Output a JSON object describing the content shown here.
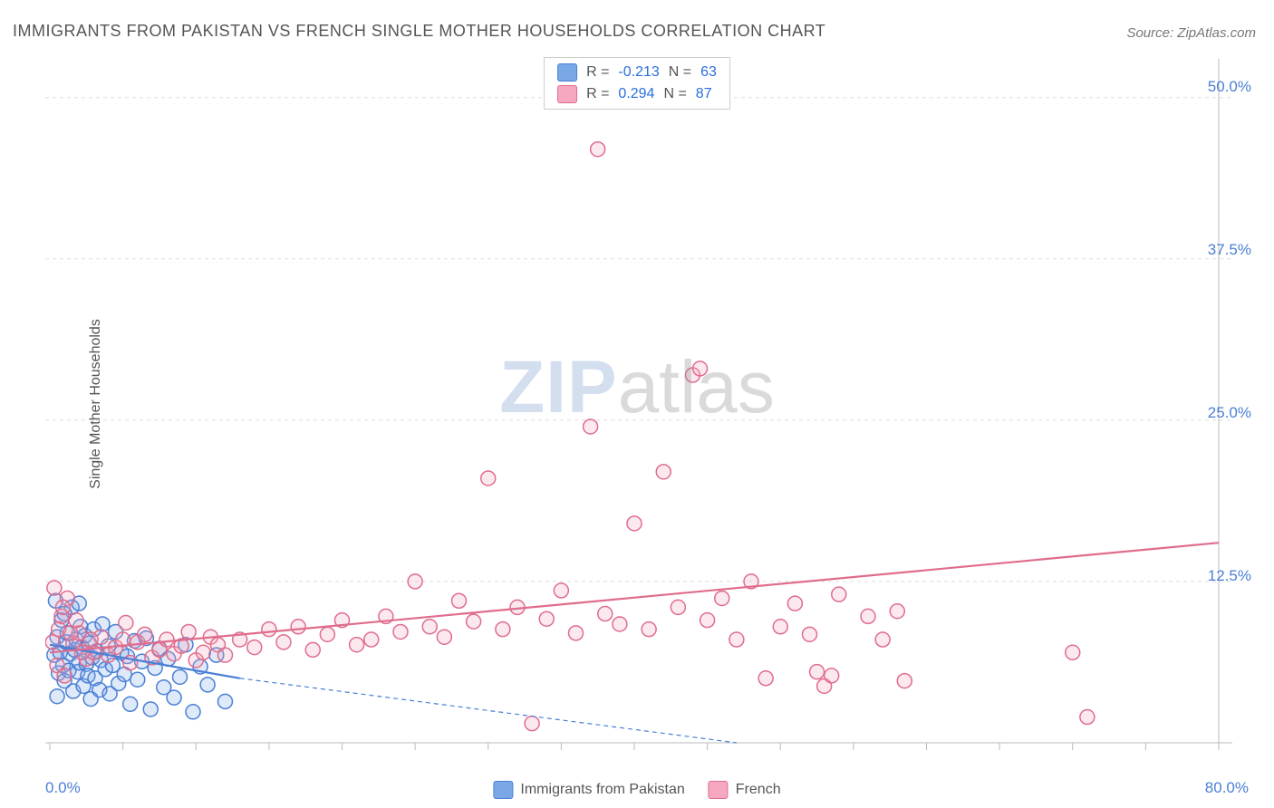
{
  "title": "IMMIGRANTS FROM PAKISTAN VS FRENCH SINGLE MOTHER HOUSEHOLDS CORRELATION CHART",
  "source": "Source: ZipAtlas.com",
  "y_axis_label": "Single Mother Households",
  "watermark": {
    "prefix": "ZIP",
    "suffix": "atlas"
  },
  "chart": {
    "type": "scatter",
    "xlim": [
      0,
      80
    ],
    "ylim": [
      0,
      53
    ],
    "x_ticks_major": [
      0,
      5,
      10,
      15,
      20,
      25,
      30,
      35,
      40,
      45,
      50,
      55,
      60,
      65,
      70,
      75,
      80
    ],
    "x_tick_labels": {
      "min": "0.0%",
      "max": "80.0%"
    },
    "y_gridlines": [
      12.5,
      25.0,
      37.5,
      50.0
    ],
    "y_tick_labels": [
      "12.5%",
      "25.0%",
      "37.5%",
      "50.0%"
    ],
    "background_color": "#ffffff",
    "grid_color": "#dddddd",
    "axis_color": "#bbbbbb",
    "marker_radius": 8,
    "marker_stroke_width": 1.5,
    "marker_fill_opacity": 0.25,
    "line_width_solid": 2.2,
    "line_width_dash": 1.2
  },
  "series_a": {
    "name": "Immigrants from Pakistan",
    "fill_color": "#7aa8e6",
    "stroke_color": "#4a7fd6",
    "n": 63,
    "r": "-0.213",
    "trend_solid": {
      "x1": 0,
      "y1": 7.6,
      "x2": 13,
      "y2": 5.0
    },
    "trend_dash": {
      "x1": 13,
      "y1": 5.0,
      "x2": 47,
      "y2": 0.0
    },
    "points": [
      {
        "x": 0.3,
        "y": 6.8
      },
      {
        "x": 0.5,
        "y": 8.2
      },
      {
        "x": 0.6,
        "y": 5.4
      },
      {
        "x": 0.7,
        "y": 7.0
      },
      {
        "x": 0.8,
        "y": 9.5
      },
      {
        "x": 0.9,
        "y": 6.0
      },
      {
        "x": 1.0,
        "y": 4.8
      },
      {
        "x": 1.1,
        "y": 7.8
      },
      {
        "x": 1.2,
        "y": 8.5
      },
      {
        "x": 1.3,
        "y": 5.6
      },
      {
        "x": 1.4,
        "y": 6.9
      },
      {
        "x": 1.5,
        "y": 10.5
      },
      {
        "x": 1.6,
        "y": 4.0
      },
      {
        "x": 1.7,
        "y": 7.2
      },
      {
        "x": 1.8,
        "y": 8.0
      },
      {
        "x": 1.9,
        "y": 5.5
      },
      {
        "x": 2.0,
        "y": 6.2
      },
      {
        "x": 2.1,
        "y": 9.0
      },
      {
        "x": 2.2,
        "y": 7.4
      },
      {
        "x": 2.3,
        "y": 4.4
      },
      {
        "x": 2.4,
        "y": 8.3
      },
      {
        "x": 2.5,
        "y": 6.1
      },
      {
        "x": 2.6,
        "y": 5.2
      },
      {
        "x": 2.7,
        "y": 7.7
      },
      {
        "x": 2.8,
        "y": 3.4
      },
      {
        "x": 2.9,
        "y": 6.6
      },
      {
        "x": 3.0,
        "y": 8.8
      },
      {
        "x": 3.1,
        "y": 5.0
      },
      {
        "x": 3.2,
        "y": 7.1
      },
      {
        "x": 3.4,
        "y": 4.1
      },
      {
        "x": 3.5,
        "y": 6.4
      },
      {
        "x": 3.6,
        "y": 9.2
      },
      {
        "x": 3.8,
        "y": 5.7
      },
      {
        "x": 4.0,
        "y": 7.5
      },
      {
        "x": 4.1,
        "y": 3.8
      },
      {
        "x": 4.3,
        "y": 6.0
      },
      {
        "x": 4.5,
        "y": 8.6
      },
      {
        "x": 4.7,
        "y": 4.6
      },
      {
        "x": 4.9,
        "y": 7.0
      },
      {
        "x": 5.1,
        "y": 5.3
      },
      {
        "x": 5.3,
        "y": 6.7
      },
      {
        "x": 5.5,
        "y": 3.0
      },
      {
        "x": 5.8,
        "y": 7.9
      },
      {
        "x": 6.0,
        "y": 4.9
      },
      {
        "x": 6.3,
        "y": 6.3
      },
      {
        "x": 6.6,
        "y": 8.1
      },
      {
        "x": 6.9,
        "y": 2.6
      },
      {
        "x": 7.2,
        "y": 5.8
      },
      {
        "x": 7.5,
        "y": 7.3
      },
      {
        "x": 7.8,
        "y": 4.3
      },
      {
        "x": 8.1,
        "y": 6.5
      },
      {
        "x": 8.5,
        "y": 3.5
      },
      {
        "x": 8.9,
        "y": 5.1
      },
      {
        "x": 9.3,
        "y": 7.6
      },
      {
        "x": 9.8,
        "y": 2.4
      },
      {
        "x": 10.3,
        "y": 5.9
      },
      {
        "x": 10.8,
        "y": 4.5
      },
      {
        "x": 11.4,
        "y": 6.8
      },
      {
        "x": 12.0,
        "y": 3.2
      },
      {
        "x": 0.4,
        "y": 11.0
      },
      {
        "x": 0.5,
        "y": 3.6
      },
      {
        "x": 1.0,
        "y": 10.0
      },
      {
        "x": 2.0,
        "y": 10.8
      }
    ]
  },
  "series_b": {
    "name": "French",
    "fill_color": "#f5a8c0",
    "stroke_color": "#e06c8c",
    "n": 87,
    "r": "0.294",
    "trend_solid": {
      "x1": 0,
      "y1": 7.0,
      "x2": 80,
      "y2": 15.5
    },
    "points": [
      {
        "x": 0.2,
        "y": 7.8
      },
      {
        "x": 0.5,
        "y": 6.0
      },
      {
        "x": 0.8,
        "y": 9.8
      },
      {
        "x": 1.0,
        "y": 5.2
      },
      {
        "x": 1.2,
        "y": 11.2
      },
      {
        "x": 1.6,
        "y": 7.7
      },
      {
        "x": 2.0,
        "y": 8.5
      },
      {
        "x": 2.5,
        "y": 6.5
      },
      {
        "x": 3.0,
        "y": 7.0
      },
      {
        "x": 3.5,
        "y": 8.2
      },
      {
        "x": 4.0,
        "y": 6.8
      },
      {
        "x": 4.5,
        "y": 7.4
      },
      {
        "x": 5.0,
        "y": 8.0
      },
      {
        "x": 5.5,
        "y": 6.2
      },
      {
        "x": 6.0,
        "y": 7.8
      },
      {
        "x": 6.5,
        "y": 8.4
      },
      {
        "x": 7.0,
        "y": 6.6
      },
      {
        "x": 7.5,
        "y": 7.2
      },
      {
        "x": 8.0,
        "y": 8.0
      },
      {
        "x": 8.5,
        "y": 6.9
      },
      {
        "x": 9.0,
        "y": 7.5
      },
      {
        "x": 9.5,
        "y": 8.6
      },
      {
        "x": 10.0,
        "y": 6.4
      },
      {
        "x": 10.5,
        "y": 7.0
      },
      {
        "x": 11.0,
        "y": 8.2
      },
      {
        "x": 11.5,
        "y": 7.6
      },
      {
        "x": 12.0,
        "y": 6.8
      },
      {
        "x": 13.0,
        "y": 8.0
      },
      {
        "x": 14.0,
        "y": 7.4
      },
      {
        "x": 15.0,
        "y": 8.8
      },
      {
        "x": 16.0,
        "y": 7.8
      },
      {
        "x": 17.0,
        "y": 9.0
      },
      {
        "x": 18.0,
        "y": 7.2
      },
      {
        "x": 19.0,
        "y": 8.4
      },
      {
        "x": 20.0,
        "y": 9.5
      },
      {
        "x": 21.0,
        "y": 7.6
      },
      {
        "x": 22.0,
        "y": 8.0
      },
      {
        "x": 23.0,
        "y": 9.8
      },
      {
        "x": 24.0,
        "y": 8.6
      },
      {
        "x": 25.0,
        "y": 12.5
      },
      {
        "x": 26.0,
        "y": 9.0
      },
      {
        "x": 27.0,
        "y": 8.2
      },
      {
        "x": 28.0,
        "y": 11.0
      },
      {
        "x": 29.0,
        "y": 9.4
      },
      {
        "x": 30.0,
        "y": 20.5
      },
      {
        "x": 31.0,
        "y": 8.8
      },
      {
        "x": 32.0,
        "y": 10.5
      },
      {
        "x": 33.0,
        "y": 1.5
      },
      {
        "x": 34.0,
        "y": 9.6
      },
      {
        "x": 35.0,
        "y": 11.8
      },
      {
        "x": 36.0,
        "y": 8.5
      },
      {
        "x": 37.0,
        "y": 24.5
      },
      {
        "x": 37.5,
        "y": 46.0
      },
      {
        "x": 38.0,
        "y": 10.0
      },
      {
        "x": 39.0,
        "y": 9.2
      },
      {
        "x": 40.0,
        "y": 17.0
      },
      {
        "x": 41.0,
        "y": 8.8
      },
      {
        "x": 42.0,
        "y": 21.0
      },
      {
        "x": 43.0,
        "y": 10.5
      },
      {
        "x": 44.0,
        "y": 28.5
      },
      {
        "x": 44.5,
        "y": 29.0
      },
      {
        "x": 45.0,
        "y": 9.5
      },
      {
        "x": 46.0,
        "y": 11.2
      },
      {
        "x": 47.0,
        "y": 8.0
      },
      {
        "x": 48.0,
        "y": 12.5
      },
      {
        "x": 49.0,
        "y": 5.0
      },
      {
        "x": 50.0,
        "y": 9.0
      },
      {
        "x": 51.0,
        "y": 10.8
      },
      {
        "x": 52.0,
        "y": 8.4
      },
      {
        "x": 53.0,
        "y": 4.4
      },
      {
        "x": 54.0,
        "y": 11.5
      },
      {
        "x": 53.5,
        "y": 5.2
      },
      {
        "x": 56.0,
        "y": 9.8
      },
      {
        "x": 57.0,
        "y": 8.0
      },
      {
        "x": 58.0,
        "y": 10.2
      },
      {
        "x": 58.5,
        "y": 4.8
      },
      {
        "x": 70.0,
        "y": 7.0
      },
      {
        "x": 71.0,
        "y": 2.0
      },
      {
        "x": 52.5,
        "y": 5.5
      },
      {
        "x": 0.3,
        "y": 12.0
      },
      {
        "x": 0.6,
        "y": 8.8
      },
      {
        "x": 0.9,
        "y": 10.5
      },
      {
        "x": 1.4,
        "y": 8.5
      },
      {
        "x": 1.8,
        "y": 9.5
      },
      {
        "x": 2.2,
        "y": 7.0
      },
      {
        "x": 2.8,
        "y": 8.0
      },
      {
        "x": 5.2,
        "y": 9.3
      }
    ]
  },
  "legend_top": {
    "r_label": "R =",
    "n_label": "N ="
  },
  "legend_bottom": {
    "series_a_label": "Immigrants from Pakistan",
    "series_b_label": "French"
  }
}
